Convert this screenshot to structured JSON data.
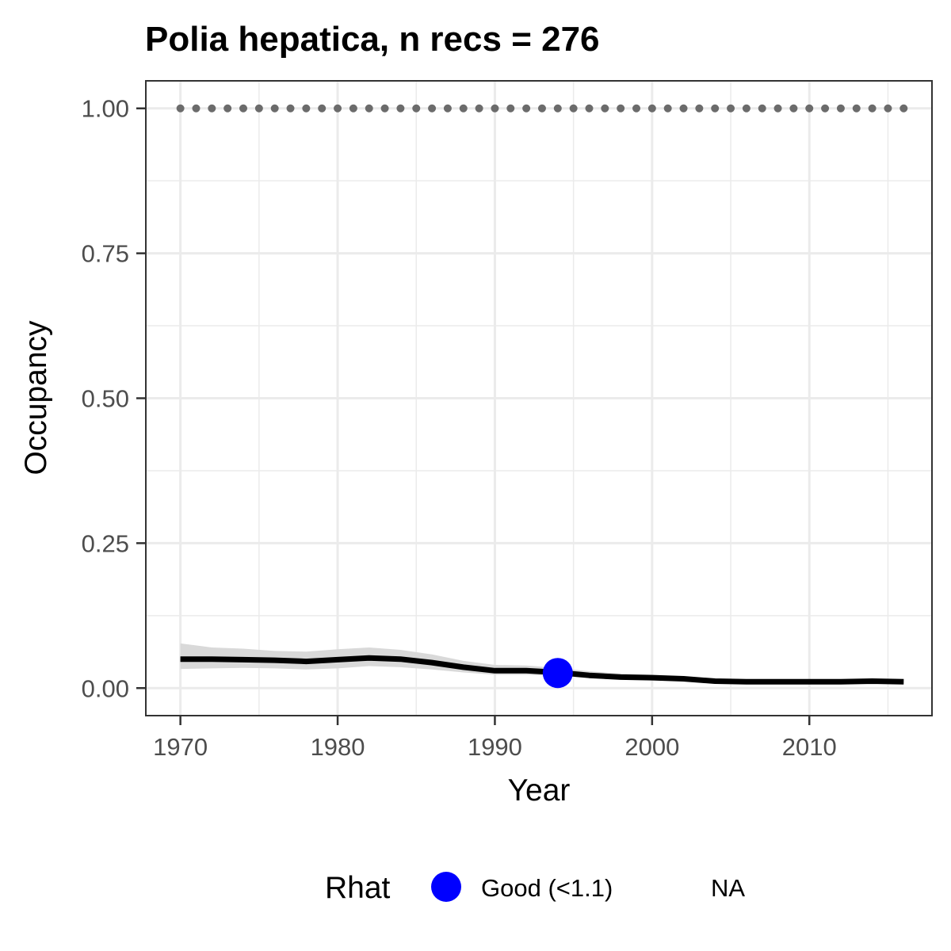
{
  "chart_data": {
    "type": "line",
    "title": "Polia hepatica, n recs = 276",
    "xlabel": "Year",
    "ylabel": "Occupancy",
    "xlim": [
      1967.8,
      2017.8
    ],
    "ylim": [
      -0.0475,
      1.0475
    ],
    "x_ticks": [
      1970,
      1980,
      1990,
      2000,
      2010
    ],
    "x_tick_labels": [
      "1970",
      "1980",
      "1990",
      "2000",
      "2010"
    ],
    "y_ticks": [
      0,
      0.25,
      0.5,
      0.75,
      1
    ],
    "y_tick_labels": [
      "0.00",
      "0.25",
      "0.50",
      "0.75",
      "1.00"
    ],
    "grid": true,
    "series": [
      {
        "kind": "line",
        "color": "#000000",
        "x": [
          1970,
          1972,
          1974,
          1976,
          1978,
          1980,
          1982,
          1984,
          1986,
          1988,
          1990,
          1992,
          1994,
          1996,
          1998,
          2000,
          2002,
          2004,
          2006,
          2008,
          2010,
          2012,
          2014,
          2016
        ],
        "y": [
          0.05,
          0.05,
          0.049,
          0.048,
          0.046,
          0.049,
          0.052,
          0.05,
          0.044,
          0.036,
          0.03,
          0.03,
          0.027,
          0.022,
          0.019,
          0.018,
          0.016,
          0.012,
          0.011,
          0.011,
          0.011,
          0.011,
          0.012,
          0.011
        ],
        "lower": [
          0.033,
          0.034,
          0.035,
          0.034,
          0.032,
          0.034,
          0.038,
          0.036,
          0.032,
          0.027,
          0.023,
          0.023,
          0.021,
          0.017,
          0.015,
          0.014,
          0.012,
          0.009,
          0.008,
          0.008,
          0.008,
          0.008,
          0.009,
          0.008
        ],
        "upper": [
          0.077,
          0.07,
          0.068,
          0.064,
          0.063,
          0.067,
          0.07,
          0.066,
          0.058,
          0.047,
          0.04,
          0.039,
          0.035,
          0.029,
          0.025,
          0.023,
          0.02,
          0.016,
          0.015,
          0.015,
          0.015,
          0.015,
          0.016,
          0.015
        ]
      },
      {
        "kind": "dotted",
        "color": "#6b6b6b",
        "x": [
          1970,
          1971,
          1972,
          1973,
          1974,
          1975,
          1976,
          1977,
          1978,
          1979,
          1980,
          1981,
          1982,
          1983,
          1984,
          1985,
          1986,
          1987,
          1988,
          1989,
          1990,
          1991,
          1992,
          1993,
          1994,
          1995,
          1996,
          1997,
          1998,
          1999,
          2000,
          2001,
          2002,
          2003,
          2004,
          2005,
          2006,
          2007,
          2008,
          2009,
          2010,
          2011,
          2012,
          2013,
          2014,
          2015,
          2016
        ],
        "y": [
          1,
          1,
          1,
          1,
          1,
          1,
          1,
          1,
          1,
          1,
          1,
          1,
          1,
          1,
          1,
          1,
          1,
          1,
          1,
          1,
          1,
          1,
          1,
          1,
          1,
          1,
          1,
          1,
          1,
          1,
          1,
          1,
          1,
          1,
          1,
          1,
          1,
          1,
          1,
          1,
          1,
          1,
          1,
          1,
          1,
          1,
          1
        ]
      },
      {
        "kind": "point",
        "name": "Good (<1.1)",
        "color": "#0000ff",
        "x": [
          1994
        ],
        "y": [
          0.026
        ]
      }
    ],
    "legend": {
      "title": "Rhat",
      "position": "bottom",
      "entries": [
        {
          "label": "Good (<1.1)",
          "color": "#0000ff"
        },
        {
          "label": "NA"
        }
      ]
    },
    "colors": {
      "ribbon": "#d9d9d9",
      "grid": "#ebebeb",
      "panel_border": "#333333",
      "tick_text": "#4d4d4d"
    }
  }
}
